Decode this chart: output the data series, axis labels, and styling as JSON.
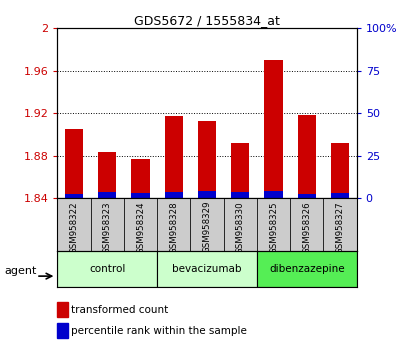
{
  "title": "GDS5672 / 1555834_at",
  "samples": [
    "GSM958322",
    "GSM958323",
    "GSM958324",
    "GSM958328",
    "GSM958329",
    "GSM958330",
    "GSM958325",
    "GSM958326",
    "GSM958327"
  ],
  "transformed_count": [
    1.905,
    1.884,
    1.877,
    1.917,
    1.913,
    1.892,
    1.97,
    1.918,
    1.892
  ],
  "percentile_rank": [
    2.5,
    3.5,
    3.0,
    3.5,
    4.0,
    3.5,
    4.5,
    2.5,
    3.0
  ],
  "bar_bottom": 1.84,
  "ylim_left": [
    1.84,
    2.0
  ],
  "ylim_right": [
    0,
    100
  ],
  "yticks_left": [
    1.84,
    1.88,
    1.92,
    1.96,
    2.0
  ],
  "yticks_right": [
    0,
    25,
    50,
    75,
    100
  ],
  "ytick_labels_left": [
    "1.84",
    "1.88",
    "1.92",
    "1.96",
    "2"
  ],
  "ytick_labels_right": [
    "0",
    "25",
    "50",
    "75",
    "100%"
  ],
  "red_color": "#cc0000",
  "blue_color": "#0000cc",
  "bar_width": 0.55,
  "groups": [
    {
      "label": "control",
      "indices": [
        0,
        1,
        2
      ],
      "color": "#ccffcc"
    },
    {
      "label": "bevacizumab",
      "indices": [
        3,
        4,
        5
      ],
      "color": "#ccffcc"
    },
    {
      "label": "dibenzazepine",
      "indices": [
        6,
        7,
        8
      ],
      "color": "#55ee55"
    }
  ],
  "agent_label": "agent",
  "legend_red": "transformed count",
  "legend_blue": "percentile rank within the sample",
  "tick_color_left": "#cc0000",
  "tick_color_right": "#0000cc",
  "sample_box_color": "#cccccc",
  "fig_width": 4.1,
  "fig_height": 3.54,
  "dpi": 100
}
